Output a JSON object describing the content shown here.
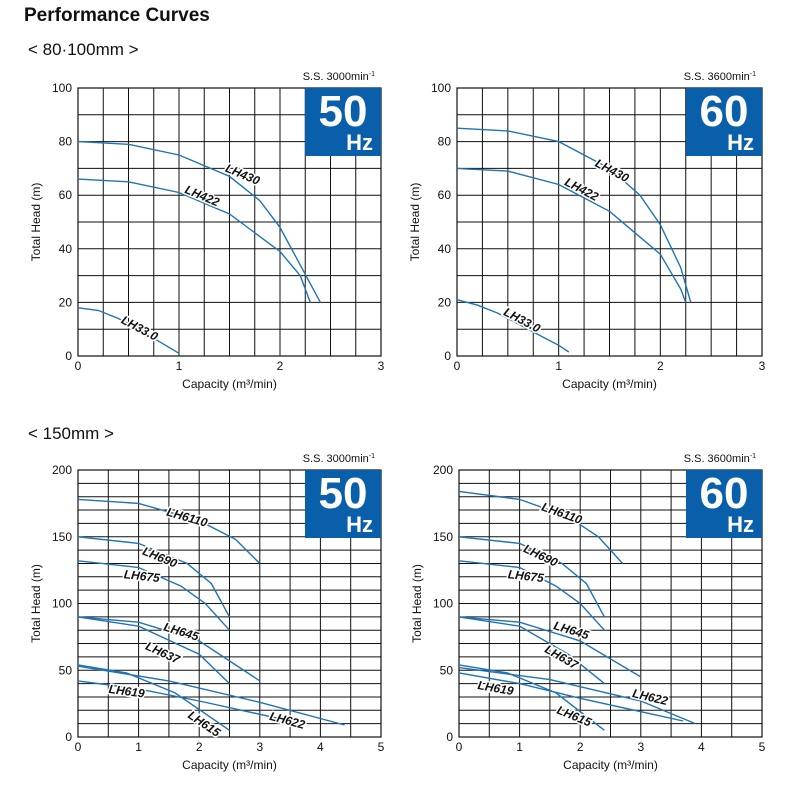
{
  "page": {
    "title": "Performance Curves",
    "section1_label": "< 80·100mm >",
    "section2_label": "< 150mm >"
  },
  "colors": {
    "curve": "#1f73b6",
    "badge": "#0a5fab",
    "grid": "#111111"
  },
  "chart_data": [
    {
      "type": "line",
      "title": "80·100mm 50Hz",
      "speed": "S.S. 3000min",
      "speed_sup": "-1",
      "badge_freq": "50",
      "badge_unit": "Hz",
      "xlabel": "Capacity (m³/min)",
      "ylabel": "Total Head (m)",
      "xlim": [
        0,
        3
      ],
      "ylim": [
        0,
        100
      ],
      "xticks": [
        "0",
        "1",
        "2",
        "3"
      ],
      "yticks": [
        "0",
        "20",
        "40",
        "60",
        "80",
        "100"
      ],
      "series": [
        {
          "name": "LH430",
          "x": [
            0,
            0.5,
            1.0,
            1.5,
            1.8,
            2.0,
            2.2,
            2.4
          ],
          "y": [
            80,
            79,
            75,
            67,
            58,
            48,
            34,
            20
          ]
        },
        {
          "name": "LH422",
          "x": [
            0,
            0.5,
            1.0,
            1.5,
            2.0,
            2.2,
            2.3
          ],
          "y": [
            66,
            65,
            61,
            53,
            39,
            30,
            20
          ]
        },
        {
          "name": "LH33.0",
          "x": [
            0,
            0.2,
            0.4,
            0.6,
            0.8,
            1.0
          ],
          "y": [
            18,
            17,
            14,
            10,
            5.5,
            1
          ]
        }
      ],
      "label_pos": [
        {
          "name": "LH430",
          "x": 1.45,
          "y": 69
        },
        {
          "name": "LH422",
          "x": 1.05,
          "y": 61
        },
        {
          "name": "LH33.0",
          "x": 0.42,
          "y": 12.5
        }
      ]
    },
    {
      "type": "line",
      "title": "80·100mm 60Hz",
      "speed": "S.S. 3600min",
      "speed_sup": "-1",
      "badge_freq": "60",
      "badge_unit": "Hz",
      "xlabel": "Capacity (m³/min)",
      "ylabel": "Total Head (m)",
      "xlim": [
        0,
        3
      ],
      "ylim": [
        0,
        100
      ],
      "xticks": [
        "0",
        "1",
        "2",
        "3"
      ],
      "yticks": [
        "0",
        "20",
        "40",
        "60",
        "80",
        "100"
      ],
      "series": [
        {
          "name": "LH430",
          "x": [
            0,
            0.5,
            1.0,
            1.5,
            1.8,
            2.0,
            2.2,
            2.3
          ],
          "y": [
            85,
            84,
            80,
            70,
            60,
            49,
            33,
            20
          ]
        },
        {
          "name": "LH422",
          "x": [
            0,
            0.5,
            1.0,
            1.5,
            2.0,
            2.2,
            2.25
          ],
          "y": [
            70,
            69,
            64,
            54,
            38,
            25,
            20
          ]
        },
        {
          "name": "LH33.0",
          "x": [
            0,
            0.2,
            0.4,
            0.6,
            0.8,
            1.0,
            1.1
          ],
          "y": [
            21,
            19,
            16,
            12,
            8,
            4,
            1.5
          ]
        }
      ],
      "label_pos": [
        {
          "name": "LH430",
          "x": 1.35,
          "y": 71
        },
        {
          "name": "LH422",
          "x": 1.05,
          "y": 64
        },
        {
          "name": "LH33.0",
          "x": 0.45,
          "y": 15.5
        }
      ]
    },
    {
      "type": "line",
      "title": "150mm 50Hz",
      "speed": "S.S. 3000min",
      "speed_sup": "-1",
      "badge_freq": "50",
      "badge_unit": "Hz",
      "xlabel": "Capacity (m³/min)",
      "ylabel": "Total Head (m)",
      "xlim": [
        0,
        5
      ],
      "ylim": [
        0,
        200
      ],
      "xticks": [
        "0",
        "1",
        "2",
        "3",
        "4",
        "5"
      ],
      "yticks": [
        "0",
        "50",
        "100",
        "150",
        "200"
      ],
      "series": [
        {
          "name": "LH6110",
          "x": [
            0,
            1.0,
            2.0,
            2.6,
            3.0
          ],
          "y": [
            178,
            175,
            162,
            148,
            130
          ]
        },
        {
          "name": "LH690",
          "x": [
            0,
            1.0,
            1.8,
            2.2,
            2.5
          ],
          "y": [
            150,
            145,
            130,
            115,
            90
          ]
        },
        {
          "name": "LH675",
          "x": [
            0,
            1.0,
            1.7,
            2.1,
            2.5
          ],
          "y": [
            132,
            127,
            113,
            100,
            80
          ]
        },
        {
          "name": "LH645",
          "x": [
            0,
            1.0,
            2.0,
            3.0
          ],
          "y": [
            90,
            86,
            72,
            42
          ]
        },
        {
          "name": "LH637",
          "x": [
            0,
            1.0,
            2.0,
            2.5
          ],
          "y": [
            90,
            83,
            62,
            40
          ]
        },
        {
          "name": "LH622",
          "x": [
            0,
            1.5,
            3.0,
            4.4
          ],
          "y": [
            53,
            42,
            26,
            9
          ]
        },
        {
          "name": "LH619",
          "x": [
            0,
            1.0,
            2.0,
            3.7
          ],
          "y": [
            42,
            36,
            27,
            10
          ]
        },
        {
          "name": "LH615",
          "x": [
            0,
            0.8,
            1.6,
            2.5
          ],
          "y": [
            54,
            48,
            33,
            5
          ]
        }
      ],
      "label_pos": [
        {
          "name": "LH6110",
          "x": 1.45,
          "y": 166
        },
        {
          "name": "LH690",
          "x": 1.05,
          "y": 137
        },
        {
          "name": "LH675",
          "x": 0.75,
          "y": 119
        },
        {
          "name": "LH645",
          "x": 1.4,
          "y": 80
        },
        {
          "name": "LH637",
          "x": 1.1,
          "y": 66
        },
        {
          "name": "LH619",
          "x": 0.5,
          "y": 33
        },
        {
          "name": "LH615",
          "x": 1.8,
          "y": 15
        },
        {
          "name": "LH622",
          "x": 3.15,
          "y": 13
        }
      ]
    },
    {
      "type": "line",
      "title": "150mm 60Hz",
      "speed": "S.S. 3600min",
      "speed_sup": "-1",
      "badge_freq": "60",
      "badge_unit": "Hz",
      "xlabel": "Capacity (m³/min)",
      "ylabel": "Total Head (m)",
      "xlim": [
        0,
        5
      ],
      "ylim": [
        0,
        200
      ],
      "xticks": [
        "0",
        "1",
        "2",
        "3",
        "4",
        "5"
      ],
      "yticks": [
        "0",
        "50",
        "100",
        "150",
        "200"
      ],
      "series": [
        {
          "name": "LH6110",
          "x": [
            0,
            1.0,
            1.8,
            2.3,
            2.7
          ],
          "y": [
            184,
            178,
            165,
            150,
            130
          ]
        },
        {
          "name": "LH690",
          "x": [
            0,
            1.0,
            1.7,
            2.1,
            2.4
          ],
          "y": [
            150,
            145,
            130,
            115,
            90
          ]
        },
        {
          "name": "LH675",
          "x": [
            0,
            1.0,
            1.6,
            2.0,
            2.4
          ],
          "y": [
            132,
            127,
            113,
            100,
            80
          ]
        },
        {
          "name": "LH645",
          "x": [
            0,
            1.0,
            2.0,
            3.0
          ],
          "y": [
            90,
            86,
            72,
            45
          ]
        },
        {
          "name": "LH637",
          "x": [
            0,
            1.0,
            1.8,
            2.4
          ],
          "y": [
            90,
            83,
            62,
            40
          ]
        },
        {
          "name": "LH622",
          "x": [
            0,
            1.5,
            3.0,
            3.9
          ],
          "y": [
            52,
            43,
            27,
            10
          ]
        },
        {
          "name": "LH619",
          "x": [
            0,
            1.0,
            2.0,
            3.7
          ],
          "y": [
            48,
            40,
            29,
            12
          ]
        },
        {
          "name": "LH615",
          "x": [
            0,
            0.8,
            1.6,
            2.4
          ],
          "y": [
            54,
            48,
            33,
            5
          ]
        }
      ],
      "label_pos": [
        {
          "name": "LH6110",
          "x": 1.35,
          "y": 170
        },
        {
          "name": "LH690",
          "x": 1.05,
          "y": 139
        },
        {
          "name": "LH675",
          "x": 0.8,
          "y": 119
        },
        {
          "name": "LH645",
          "x": 1.55,
          "y": 81
        },
        {
          "name": "LH637",
          "x": 1.4,
          "y": 64
        },
        {
          "name": "LH619",
          "x": 0.3,
          "y": 36
        },
        {
          "name": "LH615",
          "x": 1.6,
          "y": 18
        },
        {
          "name": "LH622",
          "x": 2.85,
          "y": 30
        }
      ]
    }
  ]
}
